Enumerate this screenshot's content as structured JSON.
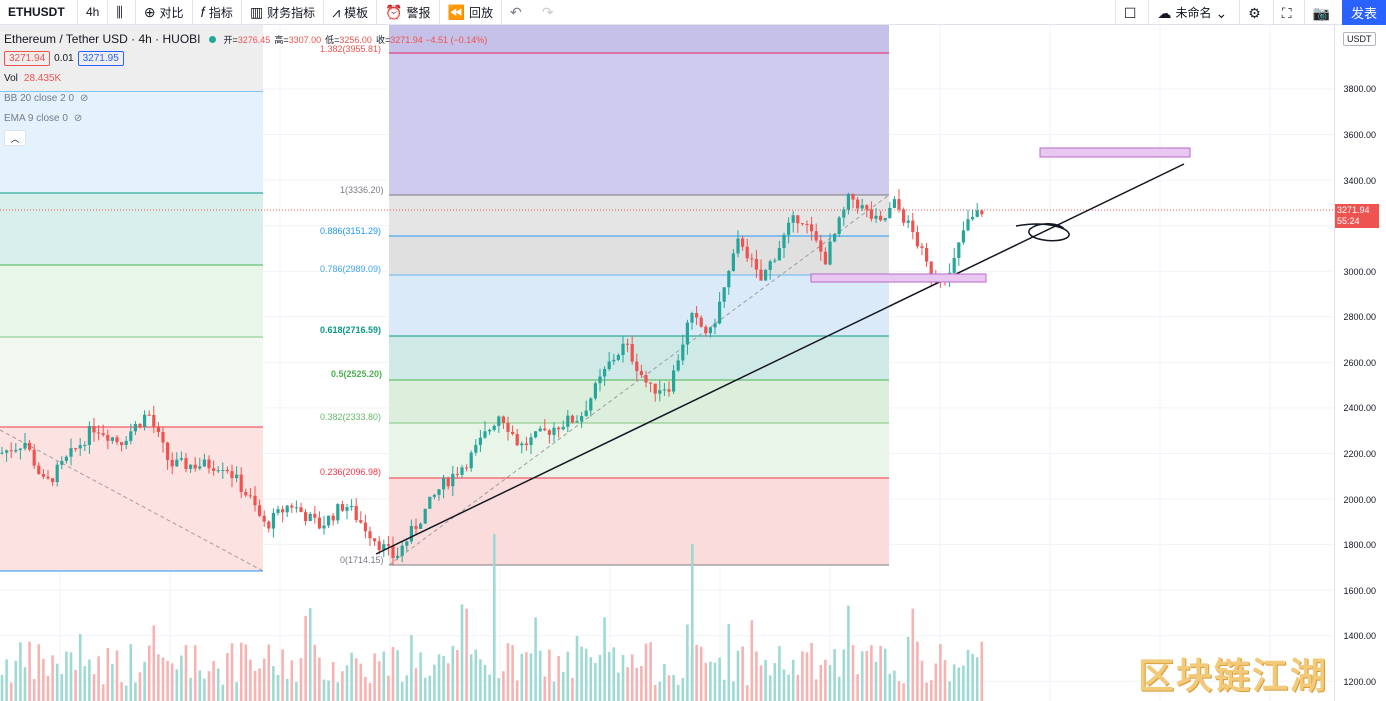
{
  "toolbar": {
    "symbol": "ETHUSDT",
    "interval": "4h",
    "compare_label": "对比",
    "indicators_label": "指标",
    "financials_label": "财务指标",
    "templates_label": "模板",
    "alert_label": "警报",
    "replay_label": "回放",
    "layout_name": "未命名",
    "publish_label": "发表"
  },
  "legend": {
    "title": "Ethereum / Tether USD · 4h · HUOBI",
    "ohlc": [
      {
        "k": "开=",
        "v": "3276.45"
      },
      {
        "k": "高=",
        "v": "3307.00"
      },
      {
        "k": "低=",
        "v": "3256.00"
      },
      {
        "k": "收=",
        "v": "3271.94 −4.51 (−0.14%)"
      }
    ],
    "bid": "3271.94",
    "spread": "0.01",
    "ask": "3271.95",
    "vol_label": "Vol",
    "vol_value": "28.435K",
    "indicators": [
      "BB 20 close 2 0",
      "EMA 9 close 0"
    ]
  },
  "price_axis": {
    "unit": "USDT",
    "ticks": [
      "3800.00",
      "3600.00",
      "3400.00",
      "3000.00",
      "2800.00",
      "2600.00",
      "2400.00",
      "2200.00",
      "2000.00",
      "1800.00",
      "1600.00",
      "1400.00",
      "1200.00"
    ],
    "last_price": "3271.94",
    "countdown": "55:24"
  },
  "fib": {
    "levels": [
      {
        "label": "1.382(3955.81)",
        "color": "#e91e63"
      },
      {
        "label": "1(3336.20)",
        "color": "#787b86"
      },
      {
        "label": "0.886(3151.29)",
        "color": "#2196f3"
      },
      {
        "label": "0.786(2989.09)",
        "color": "#64b5f6"
      },
      {
        "label": "0.618(2716.59)",
        "color": "#089981"
      },
      {
        "label": "0.5(2525.20)",
        "color": "#4caf50"
      },
      {
        "label": "0.382(2333.80)",
        "color": "#81c784"
      },
      {
        "label": "0.236(2096.98)",
        "color": "#f23645"
      },
      {
        "label": "0(1714.15)",
        "color": "#787b86"
      }
    ]
  },
  "watermark": "区块链江湖",
  "colors": {
    "up": "#26a69a",
    "down": "#ef5350",
    "accent": "#2962ff"
  }
}
